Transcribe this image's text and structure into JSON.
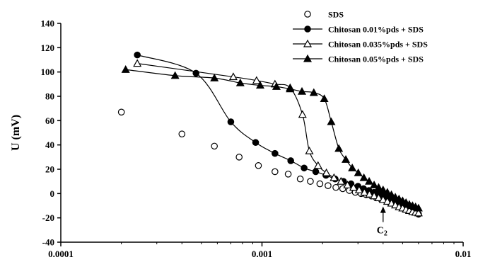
{
  "chart_data": {
    "type": "scatter",
    "title": "",
    "xlabel": "",
    "ylabel": "U (mV)",
    "xscale": "log",
    "xlim": [
      0.0001,
      0.01
    ],
    "ylim": [
      -40,
      140
    ],
    "x_ticks": [
      "0.0001",
      "0.001",
      "0.01"
    ],
    "y_ticks": [
      "-40",
      "-20",
      "0",
      "20",
      "40",
      "60",
      "80",
      "100",
      "120",
      "140"
    ],
    "grid": false,
    "legend_position": "top-right",
    "series": [
      {
        "name": "SDS",
        "marker": "open-circle",
        "color": "#000000",
        "line": false,
        "points": [
          [
            0.0002,
            67
          ],
          [
            0.0004,
            49
          ],
          [
            0.00058,
            39
          ],
          [
            0.00077,
            30
          ],
          [
            0.00096,
            23
          ],
          [
            0.00116,
            18
          ],
          [
            0.00135,
            16
          ],
          [
            0.00155,
            12
          ],
          [
            0.00174,
            10
          ],
          [
            0.00194,
            8
          ],
          [
            0.00213,
            6.5
          ],
          [
            0.00233,
            5
          ],
          [
            0.00252,
            4
          ],
          [
            0.00272,
            2.5
          ],
          [
            0.00291,
            1
          ],
          [
            0.00311,
            0
          ],
          [
            0.0033,
            -1
          ],
          [
            0.0035,
            -2
          ],
          [
            0.0037,
            -3.5
          ],
          [
            0.0039,
            -4.5
          ],
          [
            0.0041,
            -5.5
          ],
          [
            0.0043,
            -7
          ],
          [
            0.0045,
            -8
          ],
          [
            0.0047,
            -9
          ],
          [
            0.0049,
            -10
          ],
          [
            0.0051,
            -11
          ],
          [
            0.0053,
            -12
          ],
          [
            0.0055,
            -13
          ],
          [
            0.0057,
            -14
          ],
          [
            0.0059,
            -15
          ]
        ]
      },
      {
        "name": "Chitosan 0.01%pds + SDS",
        "marker": "filled-circle",
        "color": "#000000",
        "line": true,
        "points": [
          [
            0.00024,
            114
          ],
          [
            0.00047,
            99
          ],
          [
            0.0007,
            59
          ],
          [
            0.00093,
            42
          ],
          [
            0.00116,
            33
          ],
          [
            0.00139,
            27
          ],
          [
            0.00162,
            21
          ],
          [
            0.00185,
            18
          ],
          [
            0.00208,
            15
          ],
          [
            0.00231,
            12
          ],
          [
            0.00254,
            10
          ],
          [
            0.00277,
            8
          ],
          [
            0.003,
            6
          ],
          [
            0.0032,
            4
          ],
          [
            0.0034,
            2.5
          ],
          [
            0.0036,
            1
          ],
          [
            0.0038,
            0
          ],
          [
            0.004,
            -1.5
          ],
          [
            0.0042,
            -3
          ],
          [
            0.0044,
            -4.5
          ],
          [
            0.0046,
            -6
          ],
          [
            0.0048,
            -7.5
          ],
          [
            0.005,
            -9
          ],
          [
            0.0052,
            -10.5
          ],
          [
            0.0054,
            -12
          ],
          [
            0.0056,
            -13.5
          ],
          [
            0.0058,
            -15
          ],
          [
            0.006,
            -17
          ]
        ]
      },
      {
        "name": "Chitosan 0.035%pds + SDS",
        "marker": "open-triangle",
        "color": "#000000",
        "line": true,
        "points": [
          [
            0.00024,
            107
          ],
          [
            0.00072,
            96
          ],
          [
            0.00094,
            93
          ],
          [
            0.00116,
            90
          ],
          [
            0.00138,
            87
          ],
          [
            0.00159,
            65
          ],
          [
            0.00172,
            35
          ],
          [
            0.0019,
            23
          ],
          [
            0.00209,
            17
          ],
          [
            0.00228,
            13
          ],
          [
            0.00247,
            10
          ],
          [
            0.00266,
            7
          ],
          [
            0.00285,
            5
          ],
          [
            0.00304,
            3
          ],
          [
            0.00323,
            1
          ],
          [
            0.00342,
            -0.5
          ],
          [
            0.00361,
            -2
          ],
          [
            0.0038,
            -3.5
          ],
          [
            0.004,
            -5
          ],
          [
            0.0042,
            -6.5
          ],
          [
            0.0044,
            -8
          ],
          [
            0.0046,
            -9.5
          ],
          [
            0.0048,
            -11
          ],
          [
            0.005,
            -12
          ],
          [
            0.0052,
            -13
          ],
          [
            0.0054,
            -14
          ],
          [
            0.0056,
            -15
          ],
          [
            0.0058,
            -15.5
          ],
          [
            0.006,
            -16
          ]
        ]
      },
      {
        "name": "Chitosan 0.05%pds + SDS",
        "marker": "filled-triangle",
        "color": "#000000",
        "line": true,
        "points": [
          [
            0.00021,
            102
          ],
          [
            0.00037,
            97
          ],
          [
            0.00058,
            95
          ],
          [
            0.00078,
            91
          ],
          [
            0.00098,
            89
          ],
          [
            0.00118,
            88
          ],
          [
            0.00138,
            86
          ],
          [
            0.00158,
            84
          ],
          [
            0.00181,
            83
          ],
          [
            0.00204,
            78
          ],
          [
            0.00221,
            59
          ],
          [
            0.00241,
            37
          ],
          [
            0.00261,
            28
          ],
          [
            0.00281,
            21
          ],
          [
            0.00301,
            17
          ],
          [
            0.00321,
            13
          ],
          [
            0.00341,
            10
          ],
          [
            0.00361,
            7
          ],
          [
            0.0038,
            5
          ],
          [
            0.004,
            3
          ],
          [
            0.0042,
            1
          ],
          [
            0.0044,
            -1
          ],
          [
            0.0046,
            -3
          ],
          [
            0.0048,
            -4.5
          ],
          [
            0.005,
            -6
          ],
          [
            0.0052,
            -7.5
          ],
          [
            0.0054,
            -9
          ],
          [
            0.0056,
            -10
          ],
          [
            0.0058,
            -11
          ],
          [
            0.006,
            -12
          ]
        ]
      }
    ],
    "annotations": [
      {
        "label": "C",
        "subscript": "2",
        "x": 0.004,
        "y": -6,
        "type": "arrow-up"
      }
    ]
  }
}
